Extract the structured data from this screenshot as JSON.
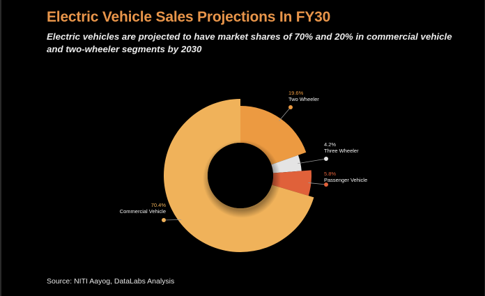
{
  "header": {
    "title": "Electric Vehicle Sales Projections In FY30",
    "subtitle": "Electric vehicles are projected to have market shares of 70% and 20% in commercial vehicle and two-wheeler segments by 2030"
  },
  "footer": {
    "source": "Source: NITI Aayog, DataLabs Analysis"
  },
  "colors": {
    "background": "#000000",
    "title": "#E8954A"
  },
  "chart_data": {
    "type": "pie",
    "variant": "variable-radius donut",
    "title": "Electric Vehicle Sales Projections In FY30",
    "unit": "%",
    "start": "top",
    "direction": "clockwise",
    "slices": [
      {
        "label": "Two Wheeler",
        "value": 19.6,
        "display": "19.6%",
        "color": "#EC9A41",
        "pct_color": "#EC9A41"
      },
      {
        "label": "Three Wheeler",
        "value": 4.2,
        "display": "4.2%",
        "color": "#E4E4E4",
        "pct_color": "#E4E4E4"
      },
      {
        "label": "Passenger Vehicle",
        "value": 5.8,
        "display": "5.8%",
        "color": "#E0613A",
        "pct_color": "#E0613A"
      },
      {
        "label": "Commercial Vehicle",
        "value": 70.4,
        "display": "70.4%",
        "color": "#F0B25A",
        "pct_color": "#F0B25A"
      }
    ],
    "legend": "none (inline labels)"
  }
}
